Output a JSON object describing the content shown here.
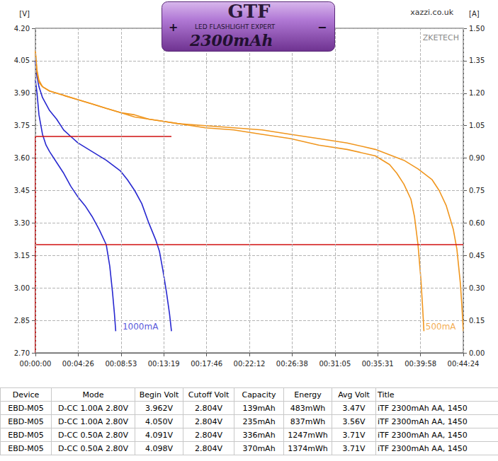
{
  "header": {
    "battery": {
      "brand": "GTF",
      "text": "LED FLASHLIGHT EXPERT",
      "capacity": "2300mAh",
      "plus": "+",
      "minus": "−"
    },
    "site": "xazzi.co.uk",
    "watermark": "ZKETECH"
  },
  "chart_data": {
    "type": "line",
    "ylabel": "[V]",
    "y2label": "[A]",
    "grid": true,
    "xlim": [
      0,
      2664
    ],
    "xticks": [
      {
        "value": 0,
        "label": "00:00:00"
      },
      {
        "value": 266,
        "label": "00:04:26"
      },
      {
        "value": 533,
        "label": "00:08:53"
      },
      {
        "value": 799,
        "label": "00:13:19"
      },
      {
        "value": 1066,
        "label": "00:17:46"
      },
      {
        "value": 1332,
        "label": "00:22:12"
      },
      {
        "value": 1598,
        "label": "00:26:38"
      },
      {
        "value": 1865,
        "label": "00:31:05"
      },
      {
        "value": 2131,
        "label": "00:35:31"
      },
      {
        "value": 2398,
        "label": "00:39:58"
      },
      {
        "value": 2664,
        "label": "00:44:24"
      }
    ],
    "ylim": [
      2.7,
      4.2
    ],
    "yticks": [
      {
        "value": 2.7,
        "label": "2.70"
      },
      {
        "value": 2.85,
        "label": "2.85"
      },
      {
        "value": 3.0,
        "label": "3.00"
      },
      {
        "value": 3.15,
        "label": "3.15"
      },
      {
        "value": 3.3,
        "label": "3.30"
      },
      {
        "value": 3.45,
        "label": "3.45"
      },
      {
        "value": 3.6,
        "label": "3.60"
      },
      {
        "value": 3.75,
        "label": "3.75"
      },
      {
        "value": 3.9,
        "label": "3.90"
      },
      {
        "value": 4.05,
        "label": "4.05"
      },
      {
        "value": 4.2,
        "label": "4.20"
      }
    ],
    "y2lim": [
      0,
      1.5
    ],
    "y2ticks": [
      {
        "value": 0,
        "label": "0.00"
      },
      {
        "value": 0.15,
        "label": "0.15"
      },
      {
        "value": 0.3,
        "label": "0.30"
      },
      {
        "value": 0.45,
        "label": "0.45"
      },
      {
        "value": 0.6,
        "label": "0.60"
      },
      {
        "value": 0.75,
        "label": "0.75"
      },
      {
        "value": 0.9,
        "label": "0.90"
      },
      {
        "value": 1.05,
        "label": "1.05"
      },
      {
        "value": 1.2,
        "label": "1.20"
      },
      {
        "value": 1.35,
        "label": "1.35"
      },
      {
        "value": 1.5,
        "label": "1.50"
      }
    ],
    "series": [
      {
        "color": "#2828d0",
        "x": [
          0,
          10,
          22,
          44,
          66,
          88,
          132,
          176,
          220,
          265,
          309,
          353,
          397,
          441,
          463,
          480,
          492,
          500
        ],
        "values": [
          3.962,
          3.9,
          3.8,
          3.71,
          3.66,
          3.63,
          3.58,
          3.53,
          3.47,
          3.42,
          3.38,
          3.33,
          3.27,
          3.2,
          3.1,
          2.98,
          2.88,
          2.8
        ]
      },
      {
        "color": "#2828d0",
        "x": [
          0,
          9,
          22,
          44,
          88,
          132,
          176,
          220,
          265,
          353,
          441,
          530,
          573,
          618,
          662,
          706,
          750,
          772,
          794,
          816,
          835,
          847
        ],
        "values": [
          4.05,
          3.98,
          3.93,
          3.88,
          3.82,
          3.78,
          3.73,
          3.7,
          3.67,
          3.63,
          3.59,
          3.54,
          3.5,
          3.45,
          3.39,
          3.3,
          3.22,
          3.17,
          3.08,
          2.98,
          2.88,
          2.8
        ]
      },
      {
        "color": "#f0961e",
        "x": [
          0,
          9,
          22,
          44,
          88,
          176,
          265,
          353,
          441,
          530,
          618,
          706,
          794,
          882,
          1058,
          1235,
          1411,
          1588,
          1764,
          1941,
          2117,
          2205,
          2250,
          2294,
          2338,
          2360,
          2382,
          2400,
          2410,
          2419
        ],
        "values": [
          4.091,
          4.0,
          3.95,
          3.93,
          3.91,
          3.89,
          3.87,
          3.85,
          3.83,
          3.81,
          3.79,
          3.78,
          3.77,
          3.76,
          3.74,
          3.73,
          3.71,
          3.69,
          3.66,
          3.64,
          3.61,
          3.57,
          3.53,
          3.48,
          3.41,
          3.33,
          3.2,
          3.04,
          2.92,
          2.8
        ]
      },
      {
        "color": "#f0961e",
        "x": [
          0,
          9,
          22,
          44,
          88,
          176,
          265,
          353,
          441,
          530,
          618,
          706,
          794,
          882,
          1058,
          1235,
          1411,
          1588,
          1764,
          1941,
          2117,
          2294,
          2382,
          2470,
          2514,
          2558,
          2602,
          2624,
          2646,
          2655,
          2664
        ],
        "values": [
          4.098,
          4.01,
          3.96,
          3.93,
          3.91,
          3.89,
          3.87,
          3.85,
          3.83,
          3.81,
          3.8,
          3.78,
          3.77,
          3.76,
          3.75,
          3.74,
          3.73,
          3.71,
          3.69,
          3.67,
          3.64,
          3.59,
          3.55,
          3.5,
          3.45,
          3.38,
          3.27,
          3.18,
          3.02,
          2.92,
          2.8
        ]
      },
      {
        "color": "#d01010",
        "axis": "y2",
        "x": [
          0,
          0,
          847
        ],
        "values": [
          0,
          1.0,
          1.0
        ]
      },
      {
        "color": "#d01010",
        "axis": "y2",
        "x": [
          0,
          2664
        ],
        "values": [
          0.5,
          0.5
        ]
      }
    ],
    "annotations": [
      {
        "text": "1000mA",
        "x": 520,
        "y": 2.82,
        "color": "#2828d0"
      },
      {
        "text": "500mA",
        "x": 2640,
        "y": 2.82,
        "color": "#f0961e"
      }
    ]
  },
  "table": {
    "columns": [
      "Device",
      "Mode",
      "Begin Volt",
      "Cutoff Volt",
      "Capacity",
      "Energy",
      "Avg Volt",
      "Title"
    ],
    "rows": [
      [
        "EBD-M05",
        "D-CC 1.00A 2.80V",
        "3.962V",
        "2.804V",
        "139mAh",
        "483mWh",
        "3.47V",
        "iTF 2300mAh AA, 1450"
      ],
      [
        "EBD-M05",
        "D-CC 1.00A 2.80V",
        "4.050V",
        "2.804V",
        "235mAh",
        "837mWh",
        "3.56V",
        "iTF 2300mAh AA, 1450"
      ],
      [
        "EBD-M05",
        "D-CC 0.50A 2.80V",
        "4.091V",
        "2.804V",
        "336mAh",
        "1247mWh",
        "3.71V",
        "iTF 2300mAh AA, 1450"
      ],
      [
        "EBD-M05",
        "D-CC 0.50A 2.80V",
        "4.098V",
        "2.804V",
        "370mAh",
        "1374mWh",
        "3.71V",
        "iTF 2300mAh AA, 1450"
      ]
    ]
  }
}
